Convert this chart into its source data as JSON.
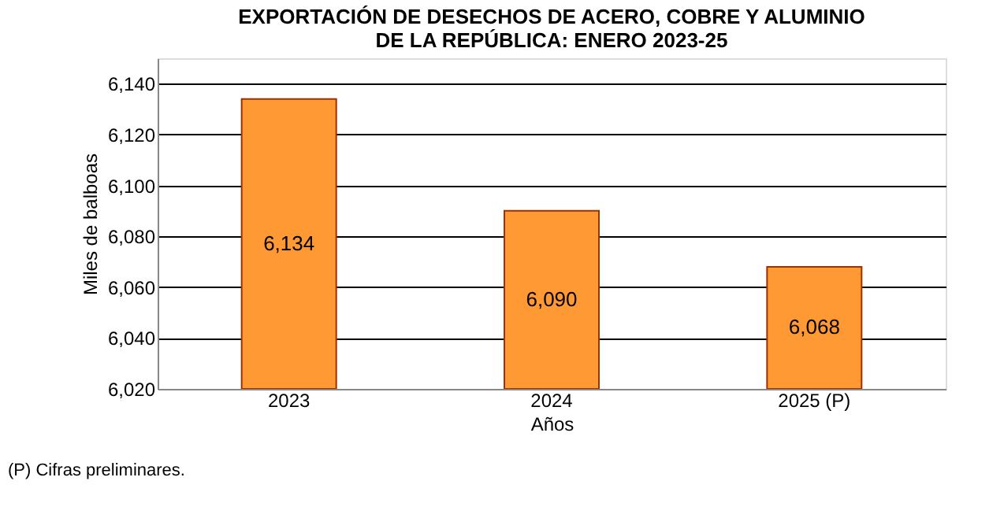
{
  "chart_data": {
    "type": "bar",
    "title": [
      "EXPORTACIÓN DE DESECHOS DE ACERO, COBRE Y ALUMINIO",
      "DE LA REPÚBLICA:  ENERO 2023-25"
    ],
    "xlabel": "Años",
    "ylabel": "Miles de balboas",
    "categories": [
      "2023",
      "2024",
      "2025 (P)"
    ],
    "values": [
      6134,
      6090,
      6068
    ],
    "color": "#ff9933",
    "ylim": [
      6020,
      6150
    ],
    "yticks": [
      {
        "value": 6020,
        "label": "6,020"
      },
      {
        "value": 6040,
        "label": "6,040"
      },
      {
        "value": 6060,
        "label": "6,060"
      },
      {
        "value": 6080,
        "label": "6,080"
      },
      {
        "value": 6100,
        "label": "6,100"
      },
      {
        "value": 6120,
        "label": "6,120"
      },
      {
        "value": 6140,
        "label": "6,140"
      }
    ],
    "grid": "y",
    "value_labels": [
      "6,134",
      "6,090",
      "6,068"
    ],
    "annotations": [
      "(P) Cifras preliminares."
    ]
  }
}
